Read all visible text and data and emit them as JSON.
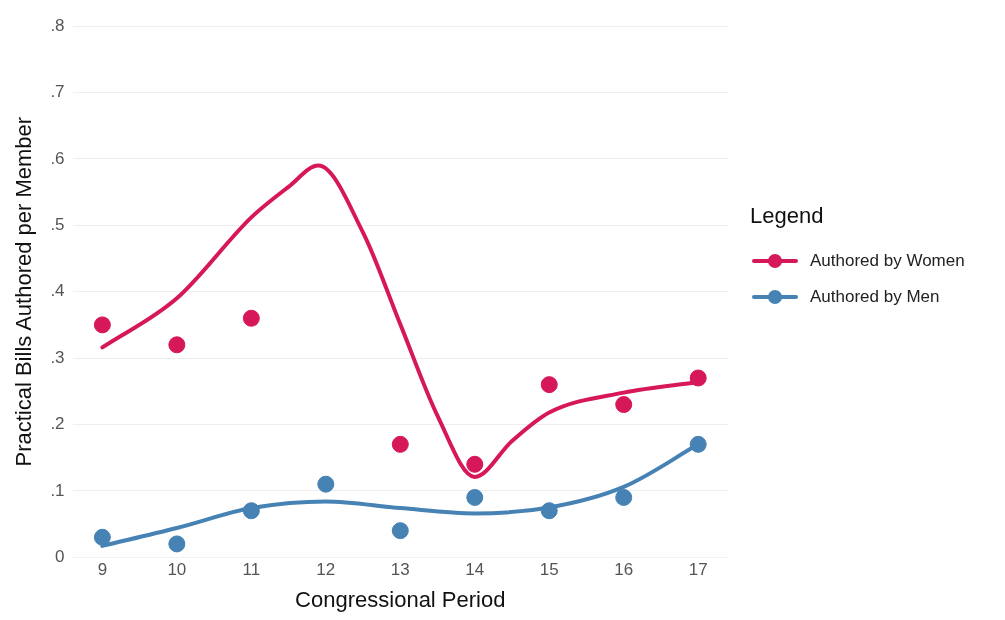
{
  "chart_data": {
    "type": "scatter",
    "xlabel": "Congressional Period",
    "ylabel": "Practical Bills Authored per Member",
    "legend_title": "Legend",
    "legend": "right",
    "grid": "y",
    "marker": "circle",
    "xlim": [
      8.6,
      17.4
    ],
    "xticks": [
      9,
      10,
      11,
      12,
      13,
      14,
      15,
      16,
      17
    ],
    "ylim": [
      0,
      0.8
    ],
    "yticks": [
      0,
      {
        "value": 0.1,
        "label": ".1"
      },
      {
        "value": 0.2,
        "label": ".2"
      },
      {
        "value": 0.3,
        "label": ".3"
      },
      {
        "value": 0.4,
        "label": ".4"
      },
      {
        "value": 0.5,
        "label": ".5"
      },
      {
        "value": 0.6,
        "label": ".6"
      },
      {
        "value": 0.7,
        "label": ".7"
      },
      {
        "value": 0.8,
        "label": ".8"
      }
    ],
    "series": [
      {
        "type": "line",
        "marker": "none",
        "color": "#d6175a",
        "x": [
          9,
          10,
          11,
          11.5,
          11.9,
          12.5,
          13,
          13.5,
          14,
          14.5,
          15,
          16,
          17
        ],
        "values": [
          0.316,
          0.39,
          0.512,
          0.558,
          0.59,
          0.489,
          0.351,
          0.213,
          0.121,
          0.175,
          0.218,
          0.248,
          0.264
        ]
      },
      {
        "type": "line",
        "marker": "none",
        "color": "#4682b4",
        "x": [
          9,
          10,
          11,
          12,
          13,
          14,
          15,
          16,
          17
        ],
        "values": [
          0.017,
          0.044,
          0.074,
          0.084,
          0.074,
          0.066,
          0.075,
          0.106,
          0.17
        ]
      },
      {
        "type": "scatter",
        "name": "Authored by Women",
        "color": "#d6175a",
        "x": [
          9,
          10,
          11,
          13,
          14,
          15,
          16,
          17
        ],
        "values": [
          0.35,
          0.32,
          0.36,
          0.17,
          0.14,
          0.26,
          0.23,
          0.27
        ]
      },
      {
        "type": "scatter",
        "name": "Authored by Men",
        "color": "#4682b4",
        "x": [
          9,
          10,
          11,
          12,
          13,
          14,
          15,
          16,
          17
        ],
        "values": [
          0.03,
          0.02,
          0.07,
          0.11,
          0.04,
          0.09,
          0.07,
          0.09,
          0.17
        ]
      }
    ]
  }
}
